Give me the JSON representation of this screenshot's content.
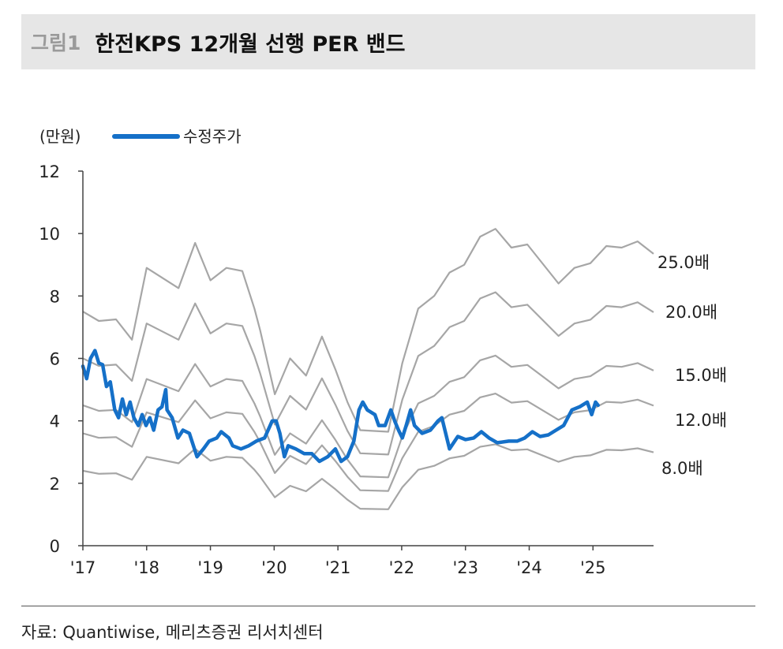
{
  "header": {
    "figure_no": "그림1",
    "title": "한전KPS 12개월 선행 PER 밴드"
  },
  "source": "자료: Quantiwise, 메리츠증권 리서치센터",
  "colors": {
    "price": "#1570c8",
    "band": "#a6a6a6",
    "axis": "#444444"
  },
  "chart_data": {
    "type": "line",
    "title": "한전KPS 12개월 선행 PER 밴드",
    "ylabel": "(만원)",
    "ylim": [
      0,
      12
    ],
    "xlim": [
      2017,
      2025.95
    ],
    "yticks": [
      0,
      2,
      4,
      6,
      8,
      10,
      12
    ],
    "xticks": [
      {
        "x": 2017,
        "label": "'17"
      },
      {
        "x": 2018,
        "label": "'18"
      },
      {
        "x": 2019,
        "label": "'19"
      },
      {
        "x": 2020,
        "label": "'20"
      },
      {
        "x": 2021,
        "label": "'21"
      },
      {
        "x": 2022,
        "label": "'22"
      },
      {
        "x": 2023,
        "label": "'23"
      },
      {
        "x": 2024,
        "label": "'24"
      },
      {
        "x": 2025,
        "label": "'25"
      }
    ],
    "legend": {
      "position": "top-left",
      "entries": [
        "수정주가"
      ]
    },
    "grid": false,
    "bands": [
      {
        "multiple": 25,
        "label": "25.0배"
      },
      {
        "multiple": 20,
        "label": "20.0배"
      },
      {
        "multiple": 15,
        "label": "15.0배"
      },
      {
        "multiple": 12,
        "label": "12.0배"
      },
      {
        "multiple": 8,
        "label": "8.0배"
      }
    ],
    "forward_eps": {
      "x": [
        2017.0,
        2017.25,
        2017.52,
        2017.77,
        2018.0,
        2018.5,
        2018.76,
        2019.0,
        2019.25,
        2019.5,
        2019.69,
        2019.78,
        2020.01,
        2020.25,
        2020.5,
        2020.75,
        2020.96,
        2021.15,
        2021.35,
        2021.79,
        2022.01,
        2022.26,
        2022.51,
        2022.75,
        2022.98,
        2023.23,
        2023.47,
        2023.72,
        2023.97,
        2024.46,
        2024.71,
        2024.96,
        2025.21,
        2025.45,
        2025.7,
        2025.95
      ],
      "values": [
        0.3,
        0.288,
        0.29,
        0.264,
        0.356,
        0.33,
        0.388,
        0.34,
        0.356,
        0.352,
        0.304,
        0.276,
        0.194,
        0.24,
        0.218,
        0.268,
        0.226,
        0.184,
        0.148,
        0.146,
        0.234,
        0.304,
        0.32,
        0.35,
        0.36,
        0.396,
        0.406,
        0.382,
        0.386,
        0.336,
        0.356,
        0.362,
        0.384,
        0.382,
        0.39,
        0.374
      ]
    },
    "series": [
      {
        "name": "수정주가",
        "x": [
          2017.0,
          2017.06,
          2017.12,
          2017.19,
          2017.25,
          2017.31,
          2017.37,
          2017.43,
          2017.5,
          2017.56,
          2017.62,
          2017.68,
          2017.74,
          2017.8,
          2017.87,
          2017.93,
          2017.99,
          2018.05,
          2018.11,
          2018.18,
          2018.24,
          2018.3,
          2018.32,
          2018.4,
          2018.49,
          2018.57,
          2018.67,
          2018.79,
          2018.89,
          2018.98,
          2019.1,
          2019.17,
          2019.29,
          2019.35,
          2019.48,
          2019.6,
          2019.72,
          2019.85,
          2019.97,
          2020.03,
          2020.09,
          2020.16,
          2020.22,
          2020.34,
          2020.47,
          2020.59,
          2020.71,
          2020.84,
          2020.96,
          2021.05,
          2021.15,
          2021.25,
          2021.33,
          2021.39,
          2021.46,
          2021.58,
          2021.64,
          2021.74,
          2021.83,
          2021.89,
          2021.95,
          2022.01,
          2022.07,
          2022.14,
          2022.2,
          2022.32,
          2022.45,
          2022.57,
          2022.63,
          2022.75,
          2022.88,
          2023.0,
          2023.13,
          2023.25,
          2023.37,
          2023.5,
          2023.68,
          2023.81,
          2023.93,
          2024.05,
          2024.17,
          2024.3,
          2024.42,
          2024.54,
          2024.67,
          2024.79,
          2024.91,
          2024.98,
          2025.04,
          2025.08
        ],
        "values": [
          5.75,
          5.35,
          6.0,
          6.25,
          5.85,
          5.8,
          5.1,
          5.25,
          4.35,
          4.1,
          4.7,
          4.2,
          4.6,
          4.1,
          3.85,
          4.2,
          3.85,
          4.1,
          3.7,
          4.35,
          4.45,
          5.0,
          4.35,
          4.1,
          3.45,
          3.7,
          3.6,
          2.85,
          3.1,
          3.35,
          3.45,
          3.65,
          3.45,
          3.2,
          3.1,
          3.2,
          3.35,
          3.45,
          4.0,
          4.0,
          3.6,
          2.85,
          3.2,
          3.1,
          2.95,
          2.95,
          2.7,
          2.85,
          3.1,
          2.7,
          2.85,
          3.35,
          4.35,
          4.6,
          4.35,
          4.2,
          3.85,
          3.85,
          4.35,
          4.0,
          3.7,
          3.45,
          3.85,
          4.35,
          3.85,
          3.6,
          3.7,
          4.0,
          4.1,
          3.1,
          3.5,
          3.4,
          3.45,
          3.65,
          3.45,
          3.3,
          3.35,
          3.35,
          3.45,
          3.65,
          3.5,
          3.55,
          3.7,
          3.85,
          4.35,
          4.45,
          4.6,
          4.2,
          4.6,
          4.5
        ]
      }
    ]
  }
}
